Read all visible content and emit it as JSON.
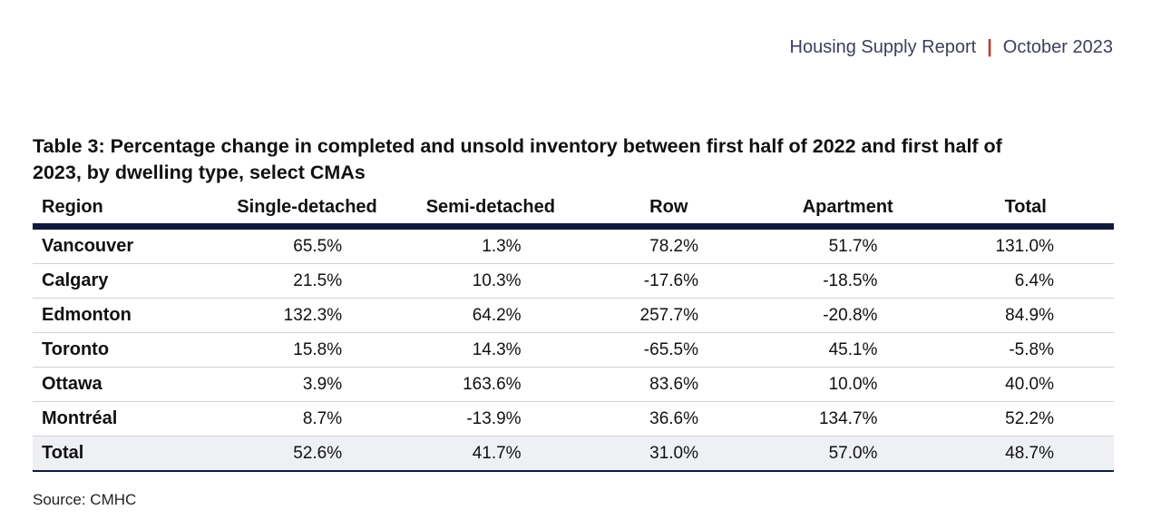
{
  "header": {
    "report": "Housing Supply Report",
    "separator": "|",
    "date": "October 2023"
  },
  "table": {
    "title": "Table 3: Percentage change in completed and unsold inventory between first half of 2022 and first half of 2023, by dwelling type, select CMAs",
    "columns": [
      "Region",
      "Single-detached",
      "Semi-detached",
      "Row",
      "Apartment",
      "Total"
    ],
    "rows": [
      [
        "Vancouver",
        "65.5%",
        "1.3%",
        "78.2%",
        "51.7%",
        "131.0%"
      ],
      [
        "Calgary",
        "21.5%",
        "10.3%",
        "-17.6%",
        "-18.5%",
        "6.4%"
      ],
      [
        "Edmonton",
        "132.3%",
        "64.2%",
        "257.7%",
        "-20.8%",
        "84.9%"
      ],
      [
        "Toronto",
        "15.8%",
        "14.3%",
        "-65.5%",
        "45.1%",
        "-5.8%"
      ],
      [
        "Ottawa",
        "3.9%",
        "163.6%",
        "83.6%",
        "10.0%",
        "40.0%"
      ],
      [
        "Montréal",
        "8.7%",
        "-13.9%",
        "36.6%",
        "134.7%",
        "52.2%"
      ]
    ],
    "total_row": [
      "Total",
      "52.6%",
      "41.7%",
      "31.0%",
      "57.0%",
      "48.7%"
    ]
  },
  "source": "Source: CMHC",
  "colors": {
    "header_text": "#3c3f5a",
    "separator": "#c0392b",
    "rule": "#111a3c",
    "total_bg": "#eef0f4"
  }
}
